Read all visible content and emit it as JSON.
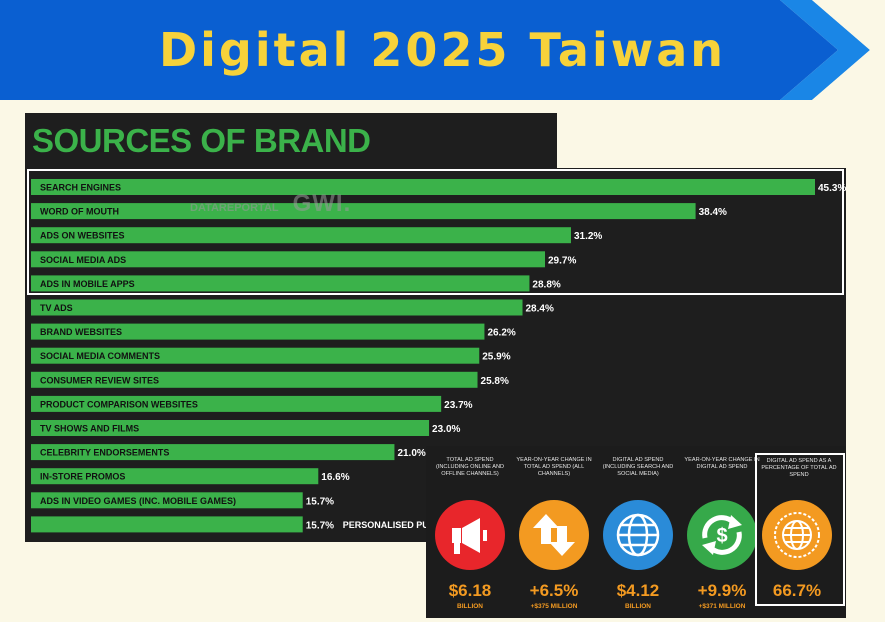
{
  "header": {
    "title": "Digital 2025 Taiwan"
  },
  "panel": {
    "title": "SOURCES OF BRAND DISCOVERY"
  },
  "watermark": {
    "source": "DATAREPORTAL",
    "brand": "GWI."
  },
  "chart_data": {
    "type": "bar",
    "orientation": "horizontal",
    "title": "SOURCES OF BRAND DISCOVERY",
    "categories": [
      "SEARCH ENGINES",
      "WORD OF MOUTH",
      "ADS ON WEBSITES",
      "SOCIAL MEDIA ADS",
      "ADS IN MOBILE APPS",
      "TV ADS",
      "BRAND WEBSITES",
      "SOCIAL MEDIA COMMENTS",
      "CONSUMER REVIEW SITES",
      "PRODUCT COMPARISON WEBSITES",
      "TV SHOWS AND FILMS",
      "CELEBRITY ENDORSEMENTS",
      "IN-STORE PROMOS",
      "ADS IN VIDEO GAMES (INC. MOBILE GAMES)",
      "PERSONALISED PURC"
    ],
    "values": [
      45.3,
      38.4,
      31.2,
      29.7,
      28.8,
      28.4,
      26.2,
      25.9,
      25.8,
      23.7,
      23.0,
      21.0,
      16.6,
      15.7,
      15.7
    ],
    "value_labels": [
      "45.3%",
      "38.4%",
      "31.2%",
      "29.7%",
      "28.8%",
      "28.4%",
      "26.2%",
      "25.9%",
      "25.8%",
      "23.7%",
      "23.0%",
      "21.0%",
      "16.6%",
      "15.7%",
      "15.7%"
    ],
    "label_outside": [
      false,
      false,
      false,
      false,
      false,
      false,
      false,
      false,
      false,
      false,
      false,
      false,
      false,
      false,
      true
    ],
    "highlight_group": "top-5",
    "xlim": [
      0,
      45.3
    ],
    "bar_color": "#3bb24a",
    "grid": false
  },
  "stats": [
    {
      "caption": "TOTAL AD SPEND (INCLUDING ONLINE AND OFFLINE CHANNELS)",
      "value": "$6.18",
      "sub": "BILLION",
      "color": "#e8262b",
      "icon": "megaphone-icon"
    },
    {
      "caption": "YEAR-ON-YEAR CHANGE IN TOTAL AD SPEND (ALL CHANNELS)",
      "value": "+6.5%",
      "sub": "+$375 MILLION",
      "color": "#f39a21",
      "icon": "up-down-arrows-icon"
    },
    {
      "caption": "DIGITAL AD SPEND (INCLUDING SEARCH AND SOCIAL MEDIA)",
      "value": "$4.12",
      "sub": "BILLION",
      "color": "#2a8bd8",
      "icon": "globe-icon"
    },
    {
      "caption": "YEAR-ON-YEAR CHANGE IN DIGITAL AD SPEND",
      "value": "+9.9%",
      "sub": "+$371 MILLION",
      "color": "#36a94a",
      "icon": "dollar-cycle-icon"
    },
    {
      "caption": "DIGITAL AD SPEND AS A PERCENTAGE OF TOTAL AD SPEND",
      "value": "66.7%",
      "sub": "",
      "color": "#f39a21",
      "icon": "globe-badge-icon"
    }
  ],
  "colors": {
    "banner": "#0a5fd1",
    "banner_text": "#f7d23a",
    "panel_bg": "#1e1e1e",
    "bar": "#3bb24a",
    "stat_value": "#f39a21"
  }
}
